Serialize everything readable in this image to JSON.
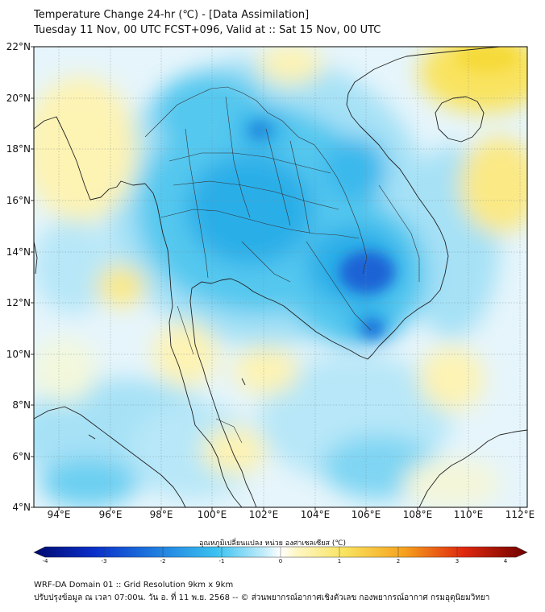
{
  "title_line1": "Temperature Change 24-hr (℃) - [Data Assimilation]",
  "title_line2": "Tuesday 11 Nov, 00 UTC FCST+096, Valid at :: Sat 15 Nov, 00 UTC",
  "lat_labels": [
    "22°N",
    "20°N",
    "18°N",
    "16°N",
    "14°N",
    "12°N",
    "10°N",
    "8°N",
    "6°N",
    "4°N"
  ],
  "lon_labels": [
    "94°E",
    "96°E",
    "98°E",
    "100°E",
    "102°E",
    "104°E",
    "106°E",
    "108°E",
    "110°E",
    "112°E"
  ],
  "colorbar": {
    "label": "อุณหภูมิเปลี่ยนแปลง หน่วย องศาเซลเซียส (℃)",
    "ticks": [
      "-4",
      "-3",
      "-2",
      "-1",
      "0",
      "1",
      "2",
      "3",
      "4"
    ],
    "min": -4,
    "max": 4
  },
  "footer_line1": "WRF-DA Domain 01 :: Grid Resolution 9km x 9km",
  "footer_line2": "ปรับปรุงข้อมูล ณ เวลา 07:00น. วัน อ. ที่ 11 พ.ย. 2568 -- © ส่วนพยากรณ์อากาศเชิงตัวเลข กองพยากรณ์อากาศ กรมอุตุนิยมวิทยา",
  "colors": {
    "background_field": "#e6f5fb",
    "light_blue": "#a6e1f6",
    "cyan": "#55c8ef",
    "mid_blue": "#2aaee8",
    "deep_blue": "#1b64d6",
    "pale_yellow": "#fdf3b3",
    "yellow": "#f9e35e",
    "coast": "#222222"
  }
}
